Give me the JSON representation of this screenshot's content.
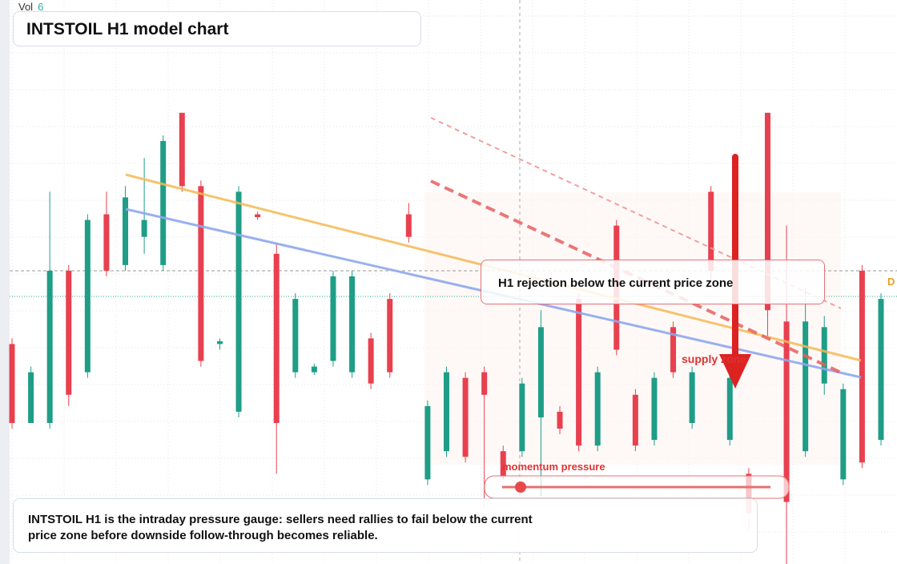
{
  "vol_label": "Vol",
  "vol_value": 6,
  "price_tag": "D",
  "chart_data": {
    "type": "candlestick",
    "title": "INTSTOIL H1 model chart",
    "ylim": [
      0,
      100
    ],
    "up_color": "#1f9d87",
    "down_color": "#e8404f",
    "open": [
      39,
      25,
      25,
      52,
      34,
      62,
      53,
      58,
      53,
      80,
      67,
      39,
      27,
      62,
      55,
      34,
      34,
      36,
      34,
      40,
      47,
      62,
      15,
      20,
      33,
      34,
      20,
      20,
      26,
      27,
      47,
      21,
      60,
      30,
      22,
      42,
      25,
      66,
      22,
      16,
      80,
      43,
      20,
      32,
      15,
      52,
      22
    ],
    "high": [
      40,
      35,
      66,
      53,
      62,
      66,
      67,
      72,
      76,
      80,
      68,
      40,
      67,
      62.5,
      57,
      48,
      35.5,
      52,
      52,
      41,
      48,
      64,
      29,
      35,
      34,
      35,
      21,
      33,
      45,
      28,
      48,
      35,
      61,
      31,
      34,
      43,
      35,
      67,
      34,
      17,
      80,
      60,
      49,
      44,
      32,
      53,
      48
    ],
    "low": [
      24,
      25,
      24,
      28,
      33,
      51,
      52,
      55,
      52,
      66,
      35,
      38,
      26,
      61,
      16,
      33,
      33.5,
      35,
      33,
      31,
      33,
      57,
      14,
      19,
      18,
      10,
      15,
      19,
      12,
      23,
      20,
      20,
      37,
      20,
      21,
      33,
      24,
      50,
      21,
      6,
      40,
      0,
      19,
      30,
      14,
      17,
      21
    ],
    "close": [
      25,
      34,
      52,
      30,
      61,
      52,
      65,
      61,
      75,
      67,
      36,
      39.5,
      66,
      61.5,
      25,
      47,
      35,
      51,
      51,
      32,
      34,
      58,
      28,
      34,
      19,
      30,
      15.5,
      32,
      42,
      24,
      21,
      34,
      38,
      21,
      33,
      34,
      34,
      52,
      33,
      9,
      45,
      11,
      43,
      42,
      31,
      18,
      47
    ],
    "annotations": [
      "H1 rejection below the current price zone",
      "supply zone",
      "momentum pressure"
    ],
    "footer": "INTSTOIL H1 is the intraday pressure gauge: sellers need rallies to fail below the current price zone before downside follow-through becomes reliable."
  }
}
